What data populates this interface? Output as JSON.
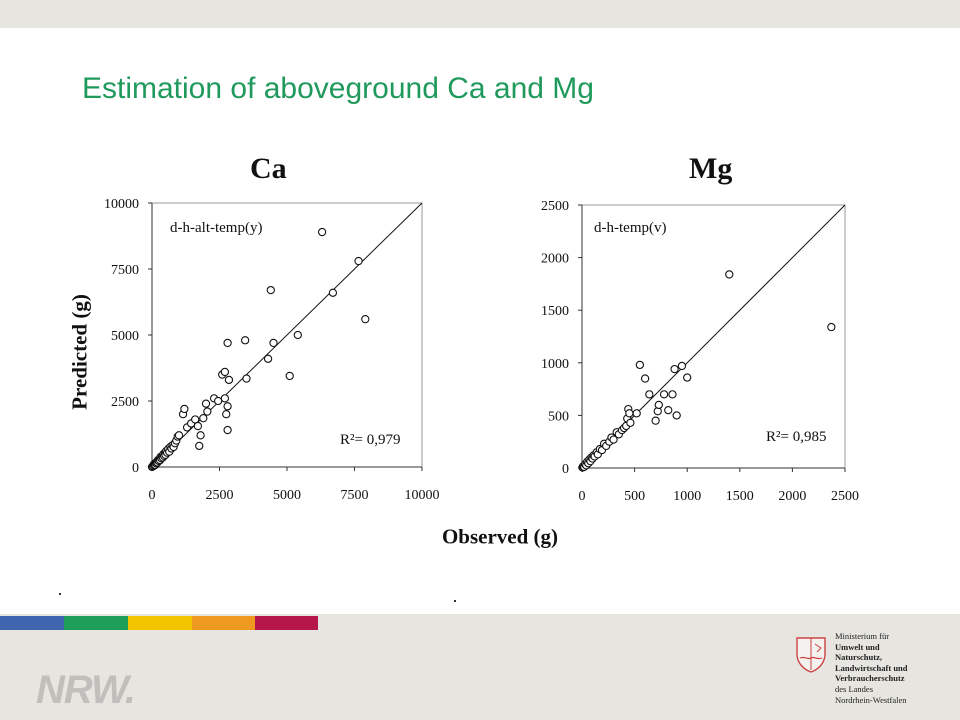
{
  "slide_title": "Estimation of aboveground Ca and Mg",
  "axis_titles": {
    "y": "Predicted (g)",
    "x": "Observed (g)"
  },
  "chart_data": [
    {
      "type": "scatter",
      "title": "Ca",
      "model": "d-h-alt-temp(y)",
      "r2_label": "R²= 0,979",
      "xlim": [
        0,
        10000
      ],
      "ylim": [
        0,
        10000
      ],
      "xticks": [
        "0",
        "2500",
        "5000",
        "7500",
        "10000"
      ],
      "yticks": [
        "0",
        "2500",
        "5000",
        "7500",
        "10000"
      ],
      "reference_line": "1:1",
      "points": [
        [
          0,
          0
        ],
        [
          40,
          30
        ],
        [
          60,
          90
        ],
        [
          80,
          60
        ],
        [
          100,
          120
        ],
        [
          120,
          80
        ],
        [
          140,
          160
        ],
        [
          160,
          140
        ],
        [
          180,
          200
        ],
        [
          200,
          170
        ],
        [
          220,
          260
        ],
        [
          250,
          230
        ],
        [
          280,
          300
        ],
        [
          300,
          260
        ],
        [
          320,
          380
        ],
        [
          350,
          330
        ],
        [
          380,
          420
        ],
        [
          400,
          360
        ],
        [
          420,
          480
        ],
        [
          450,
          420
        ],
        [
          480,
          540
        ],
        [
          500,
          460
        ],
        [
          520,
          600
        ],
        [
          560,
          540
        ],
        [
          600,
          680
        ],
        [
          640,
          580
        ],
        [
          680,
          760
        ],
        [
          720,
          700
        ],
        [
          760,
          820
        ],
        [
          800,
          760
        ],
        [
          850,
          900
        ],
        [
          900,
          1000
        ],
        [
          950,
          1150
        ],
        [
          1000,
          1200
        ],
        [
          1150,
          2000
        ],
        [
          1200,
          2200
        ],
        [
          1300,
          1500
        ],
        [
          1450,
          1650
        ],
        [
          1600,
          1800
        ],
        [
          1700,
          1550
        ],
        [
          1750,
          800
        ],
        [
          1800,
          1200
        ],
        [
          1900,
          1850
        ],
        [
          2000,
          2400
        ],
        [
          2050,
          2100
        ],
        [
          2300,
          2600
        ],
        [
          2450,
          2500
        ],
        [
          2600,
          3500
        ],
        [
          2700,
          3600
        ],
        [
          2700,
          2600
        ],
        [
          2750,
          2000
        ],
        [
          2800,
          1400
        ],
        [
          2800,
          2300
        ],
        [
          2850,
          3300
        ],
        [
          2800,
          4700
        ],
        [
          3450,
          4800
        ],
        [
          3500,
          3350
        ],
        [
          4300,
          4100
        ],
        [
          4400,
          6700
        ],
        [
          4500,
          4700
        ],
        [
          5100,
          3450
        ],
        [
          5400,
          5000
        ],
        [
          6300,
          8900
        ],
        [
          6700,
          6600
        ],
        [
          7650,
          7800
        ],
        [
          7900,
          5600
        ]
      ]
    },
    {
      "type": "scatter",
      "title": "Mg",
      "model": "d-h-temp(v)",
      "r2_label": "R²= 0,985",
      "xlim": [
        0,
        2500
      ],
      "ylim": [
        0,
        2500
      ],
      "xticks": [
        "0",
        "500",
        "1000",
        "1500",
        "2000",
        "2500"
      ],
      "yticks": [
        "0",
        "500",
        "1000",
        "1500",
        "2000",
        "2500"
      ],
      "reference_line": "1:1",
      "points": [
        [
          5,
          5
        ],
        [
          10,
          15
        ],
        [
          20,
          10
        ],
        [
          30,
          35
        ],
        [
          40,
          25
        ],
        [
          50,
          60
        ],
        [
          60,
          45
        ],
        [
          70,
          80
        ],
        [
          80,
          65
        ],
        [
          90,
          100
        ],
        [
          100,
          90
        ],
        [
          110,
          120
        ],
        [
          120,
          110
        ],
        [
          140,
          150
        ],
        [
          150,
          130
        ],
        [
          170,
          180
        ],
        [
          190,
          170
        ],
        [
          210,
          230
        ],
        [
          230,
          210
        ],
        [
          260,
          250
        ],
        [
          280,
          290
        ],
        [
          300,
          270
        ],
        [
          330,
          340
        ],
        [
          350,
          320
        ],
        [
          380,
          360
        ],
        [
          400,
          380
        ],
        [
          420,
          400
        ],
        [
          430,
          470
        ],
        [
          440,
          560
        ],
        [
          450,
          520
        ],
        [
          460,
          430
        ],
        [
          520,
          520
        ],
        [
          550,
          980
        ],
        [
          600,
          850
        ],
        [
          640,
          700
        ],
        [
          700,
          450
        ],
        [
          720,
          540
        ],
        [
          730,
          600
        ],
        [
          780,
          700
        ],
        [
          820,
          550
        ],
        [
          860,
          700
        ],
        [
          880,
          940
        ],
        [
          900,
          500
        ],
        [
          950,
          970
        ],
        [
          1000,
          860
        ],
        [
          1400,
          1840
        ],
        [
          2370,
          1340
        ]
      ]
    }
  ],
  "brand_stripe_colors": [
    "#3f64b0",
    "#1e9e58",
    "#f2c500",
    "#ee9a20",
    "#b5174a"
  ],
  "footer": {
    "logo_text": "NRW.",
    "ministry_lines": [
      {
        "text": "Ministerium für",
        "bold": false
      },
      {
        "text": "Umwelt und",
        "bold": true
      },
      {
        "text": "Naturschutz,",
        "bold": true
      },
      {
        "text": "Landwirtschaft und",
        "bold": true
      },
      {
        "text": "Verbraucherschutz",
        "bold": true
      },
      {
        "text": "des Landes",
        "bold": false
      },
      {
        "text": "Nordrhein-Westfalen",
        "bold": false
      }
    ]
  }
}
